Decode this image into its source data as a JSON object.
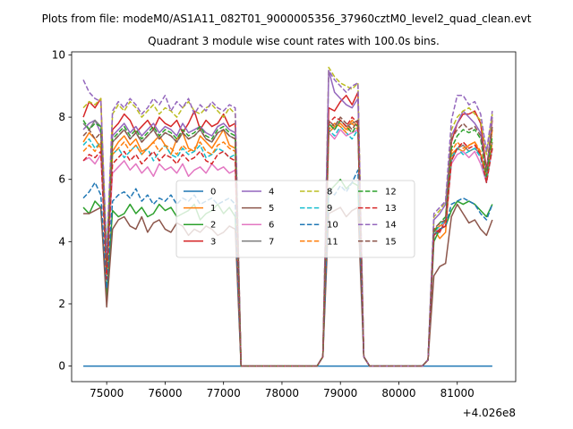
{
  "chart_data": {
    "type": "line",
    "suptitle": "Plots from file: modeM0/AS1A11_082T01_9000005356_37960cztM0_level2_quad_clean.evt",
    "title": "Quadrant 3 module wise count rates with 100.0s bins.",
    "xlabel": "",
    "ylabel": "",
    "x_offset_label": "+4.026e8",
    "xlim": [
      74400,
      82000
    ],
    "ylim": [
      -0.5,
      10.1
    ],
    "x_ticks": [
      75000,
      76000,
      77000,
      78000,
      79000,
      80000,
      81000
    ],
    "x_tick_labels": [
      "75000",
      "76000",
      "77000",
      "78000",
      "79000",
      "80000",
      "81000"
    ],
    "y_ticks": [
      0,
      2,
      4,
      6,
      8,
      10
    ],
    "y_tick_labels": [
      "0",
      "2",
      "4",
      "6",
      "8",
      "10"
    ],
    "legend": {
      "position": "center",
      "ncol": 4
    },
    "segments": [
      {
        "start": 74600,
        "n": 27
      },
      {
        "start": 78700,
        "n": 8
      },
      {
        "start": 80500,
        "n": 12
      }
    ],
    "series": [
      {
        "name": "0",
        "color": "#1f77b4",
        "dash": false,
        "values": [
          0,
          0,
          0,
          0,
          0,
          0,
          0,
          0,
          0,
          0,
          0,
          0,
          0,
          0,
          0,
          0,
          0,
          0,
          0,
          0,
          0,
          0,
          0,
          0,
          0,
          0,
          0,
          0,
          0,
          0,
          0,
          0,
          0,
          0,
          0,
          0,
          0,
          0,
          0,
          0,
          0,
          0,
          0,
          0,
          0,
          0,
          0
        ]
      },
      {
        "name": "1",
        "color": "#ff7f0e",
        "dash": false,
        "values": [
          7.2,
          7.5,
          7.3,
          7.0,
          3.0,
          6.9,
          7.2,
          7.4,
          7.1,
          7.3,
          6.9,
          7.0,
          7.2,
          7.4,
          7.1,
          6.8,
          7.3,
          7.5,
          7.0,
          6.9,
          7.4,
          7.2,
          7.0,
          7.3,
          7.6,
          7.1,
          7.0,
          0.3,
          7.5,
          7.7,
          7.8,
          7.6,
          7.9,
          7.7,
          0.3,
          0.2,
          4.4,
          4.1,
          4.3,
          6.8,
          7.0,
          6.9,
          7.1,
          7.2,
          6.8,
          6.1,
          7.6
        ]
      },
      {
        "name": "2",
        "color": "#2ca02c",
        "dash": false,
        "values": [
          5.1,
          4.9,
          5.3,
          5.1,
          2.2,
          5.0,
          4.8,
          4.9,
          5.2,
          4.9,
          5.1,
          4.8,
          4.9,
          5.2,
          5.0,
          5.1,
          4.8,
          4.9,
          5.0,
          5.2,
          4.7,
          4.9,
          5.0,
          5.2,
          4.9,
          5.1,
          4.8,
          0.3,
          5.6,
          5.8,
          6.0,
          5.7,
          5.9,
          5.8,
          0.3,
          0.2,
          4.0,
          4.4,
          4.5,
          5.0,
          5.3,
          5.2,
          5.3,
          5.2,
          5.0,
          4.8,
          5.2
        ]
      },
      {
        "name": "3",
        "color": "#d62728",
        "dash": false,
        "values": [
          8.0,
          8.5,
          8.3,
          8.6,
          3.1,
          7.6,
          7.8,
          8.1,
          7.9,
          7.5,
          7.7,
          7.9,
          7.6,
          8.0,
          7.8,
          7.7,
          7.9,
          7.5,
          7.8,
          8.2,
          7.6,
          7.9,
          7.7,
          7.8,
          8.1,
          7.7,
          7.8,
          0.3,
          8.3,
          8.2,
          8.5,
          8.7,
          8.4,
          8.8,
          0.3,
          0.2,
          4.4,
          4.3,
          4.7,
          7.2,
          7.8,
          8.1,
          8.1,
          8.2,
          7.8,
          6.3,
          7.9
        ]
      },
      {
        "name": "4",
        "color": "#9467bd",
        "dash": false,
        "values": [
          7.6,
          7.8,
          7.9,
          7.5,
          3.3,
          7.4,
          7.6,
          7.8,
          7.5,
          7.7,
          7.4,
          7.6,
          7.8,
          7.5,
          7.7,
          7.6,
          7.4,
          7.8,
          7.5,
          7.6,
          7.7,
          7.5,
          7.4,
          7.7,
          7.8,
          7.6,
          7.5,
          0.3,
          9.5,
          8.8,
          8.6,
          8.4,
          8.3,
          8.6,
          0.3,
          0.2,
          4.7,
          4.9,
          5.2,
          7.4,
          7.8,
          8.2,
          8.0,
          7.8,
          7.5,
          6.2,
          8.0
        ]
      },
      {
        "name": "5",
        "color": "#8c564b",
        "dash": false,
        "values": [
          4.9,
          4.9,
          5.0,
          5.1,
          1.9,
          4.4,
          4.7,
          4.8,
          4.5,
          4.4,
          4.8,
          4.3,
          4.6,
          4.7,
          4.4,
          4.3,
          4.6,
          4.5,
          4.2,
          4.4,
          4.3,
          4.5,
          4.4,
          4.2,
          4.3,
          4.5,
          4.4,
          0.3,
          4.9,
          5.0,
          5.1,
          4.8,
          5.0,
          5.1,
          0.3,
          0.2,
          2.9,
          3.2,
          3.3,
          4.8,
          5.2,
          4.9,
          4.6,
          4.7,
          4.4,
          4.2,
          4.7
        ]
      },
      {
        "name": "6",
        "color": "#e377c2",
        "dash": false,
        "values": [
          6.6,
          6.7,
          6.5,
          6.8,
          3.0,
          6.2,
          6.4,
          6.6,
          6.3,
          6.5,
          6.2,
          6.4,
          6.1,
          6.5,
          6.3,
          6.4,
          6.2,
          6.5,
          6.1,
          6.3,
          6.4,
          6.2,
          6.5,
          6.3,
          6.4,
          6.2,
          6.3,
          0.3,
          7.5,
          7.3,
          7.6,
          7.4,
          7.5,
          7.6,
          0.3,
          0.2,
          4.3,
          4.5,
          4.6,
          6.5,
          6.8,
          6.9,
          6.7,
          6.9,
          6.5,
          5.9,
          7.0
        ]
      },
      {
        "name": "7",
        "color": "#7f7f7f",
        "dash": false,
        "values": [
          7.8,
          7.6,
          7.9,
          7.7,
          3.1,
          7.2,
          7.4,
          7.6,
          7.3,
          7.5,
          7.2,
          7.4,
          7.6,
          7.3,
          7.5,
          7.4,
          7.2,
          7.5,
          7.3,
          7.4,
          7.6,
          7.3,
          7.2,
          7.5,
          7.6,
          7.4,
          7.3,
          0.3,
          7.8,
          7.6,
          7.9,
          7.7,
          7.8,
          7.9,
          0.3,
          0.2,
          4.2,
          4.4,
          4.5,
          6.6,
          7.0,
          7.1,
          6.9,
          7.0,
          6.8,
          6.0,
          7.2
        ]
      },
      {
        "name": "8",
        "color": "#bcbd22",
        "dash": true,
        "values": [
          8.3,
          8.5,
          8.4,
          8.6,
          3.5,
          8.1,
          8.4,
          8.2,
          8.5,
          8.3,
          8.0,
          8.2,
          8.4,
          8.1,
          8.3,
          8.2,
          8.0,
          8.3,
          8.5,
          8.2,
          8.1,
          8.3,
          8.4,
          8.2,
          8.0,
          8.3,
          8.1,
          0.3,
          9.6,
          9.3,
          9.1,
          9.0,
          8.9,
          9.1,
          0.3,
          0.2,
          4.8,
          5.0,
          5.3,
          7.6,
          8.0,
          8.2,
          8.3,
          8.1,
          7.9,
          6.8,
          8.1
        ]
      },
      {
        "name": "9",
        "color": "#17becf",
        "dash": true,
        "values": [
          7.1,
          7.3,
          7.0,
          7.2,
          3.3,
          6.8,
          7.0,
          6.7,
          6.9,
          7.1,
          6.8,
          7.0,
          6.6,
          6.9,
          7.1,
          6.8,
          6.7,
          7.0,
          6.8,
          6.9,
          7.1,
          6.7,
          6.8,
          7.0,
          6.9,
          6.7,
          6.8,
          0.3,
          7.6,
          7.4,
          7.7,
          7.5,
          7.3,
          7.6,
          0.3,
          0.2,
          4.3,
          4.5,
          4.7,
          6.7,
          7.0,
          6.8,
          6.9,
          7.0,
          6.7,
          5.9,
          7.0
        ]
      },
      {
        "name": "10",
        "color": "#1f77b4",
        "dash": true,
        "values": [
          5.4,
          5.6,
          5.9,
          5.5,
          2.5,
          5.3,
          5.5,
          5.6,
          5.4,
          5.7,
          5.3,
          5.5,
          5.2,
          5.4,
          5.3,
          5.5,
          5.2,
          5.4,
          5.3,
          5.5,
          5.2,
          5.3,
          5.4,
          5.2,
          5.3,
          5.4,
          5.2,
          0.3,
          5.7,
          5.5,
          5.8,
          5.6,
          5.9,
          6.3,
          0.3,
          0.2,
          4.2,
          4.4,
          4.5,
          5.2,
          5.3,
          5.4,
          5.3,
          5.2,
          4.9,
          4.7,
          5.2
        ]
      },
      {
        "name": "11",
        "color": "#ff7f0e",
        "dash": true,
        "values": [
          6.9,
          7.1,
          6.9,
          7.2,
          3.0,
          6.8,
          7.0,
          7.2,
          6.9,
          7.1,
          6.8,
          7.0,
          7.2,
          6.9,
          7.1,
          7.0,
          6.8,
          7.1,
          6.9,
          7.0,
          7.2,
          6.9,
          6.8,
          7.1,
          7.2,
          7.0,
          6.9,
          0.3,
          7.6,
          7.8,
          7.7,
          7.5,
          7.8,
          7.6,
          0.3,
          0.2,
          4.4,
          4.5,
          4.6,
          6.9,
          7.2,
          7.0,
          7.1,
          7.2,
          6.9,
          6.1,
          7.2
        ]
      },
      {
        "name": "12",
        "color": "#2ca02c",
        "dash": true,
        "values": [
          7.9,
          7.6,
          7.8,
          7.7,
          3.2,
          7.3,
          7.5,
          7.7,
          7.4,
          7.6,
          7.3,
          7.5,
          7.7,
          7.4,
          7.6,
          7.5,
          7.3,
          7.6,
          7.4,
          7.5,
          7.7,
          7.4,
          7.3,
          7.6,
          7.7,
          7.5,
          7.4,
          0.3,
          7.8,
          7.6,
          7.9,
          7.7,
          7.5,
          7.8,
          0.3,
          0.2,
          4.3,
          4.6,
          4.8,
          7.0,
          7.4,
          7.6,
          7.5,
          7.6,
          7.3,
          6.1,
          7.4
        ]
      },
      {
        "name": "13",
        "color": "#d62728",
        "dash": true,
        "values": [
          6.6,
          6.8,
          6.7,
          6.9,
          2.8,
          6.5,
          6.7,
          6.9,
          6.6,
          6.8,
          6.5,
          6.7,
          6.9,
          6.6,
          6.8,
          6.7,
          6.5,
          6.8,
          6.6,
          6.7,
          6.9,
          6.6,
          6.5,
          6.8,
          6.9,
          6.7,
          6.6,
          0.3,
          7.8,
          8.0,
          7.9,
          7.7,
          8.0,
          7.8,
          0.3,
          0.2,
          4.2,
          4.4,
          4.5,
          6.6,
          7.0,
          7.2,
          7.0,
          7.1,
          6.8,
          5.9,
          7.0
        ]
      },
      {
        "name": "14",
        "color": "#9467bd",
        "dash": true,
        "values": [
          9.2,
          8.8,
          8.6,
          8.5,
          3.6,
          8.2,
          8.5,
          8.3,
          8.6,
          8.4,
          8.1,
          8.3,
          8.6,
          8.4,
          8.7,
          8.2,
          8.5,
          8.3,
          8.6,
          8.1,
          8.4,
          8.2,
          8.5,
          8.3,
          8.2,
          8.4,
          8.3,
          0.3,
          9.5,
          9.2,
          9.0,
          8.8,
          9.0,
          9.1,
          0.3,
          0.2,
          4.9,
          5.1,
          5.3,
          7.9,
          8.7,
          8.7,
          8.4,
          8.5,
          8.1,
          6.9,
          8.2
        ]
      },
      {
        "name": "15",
        "color": "#8c564b",
        "dash": true,
        "values": [
          7.4,
          7.6,
          7.3,
          7.5,
          3.1,
          7.2,
          7.4,
          7.6,
          7.3,
          7.5,
          7.2,
          7.4,
          7.6,
          7.3,
          7.5,
          7.4,
          7.2,
          7.5,
          7.3,
          7.4,
          7.6,
          7.3,
          7.2,
          7.5,
          7.6,
          7.4,
          7.3,
          0.3,
          7.9,
          7.7,
          8.0,
          7.8,
          7.6,
          7.9,
          0.3,
          0.2,
          4.4,
          4.6,
          4.7,
          7.3,
          7.6,
          7.8,
          7.6,
          7.7,
          7.4,
          6.3,
          7.7
        ]
      }
    ]
  }
}
